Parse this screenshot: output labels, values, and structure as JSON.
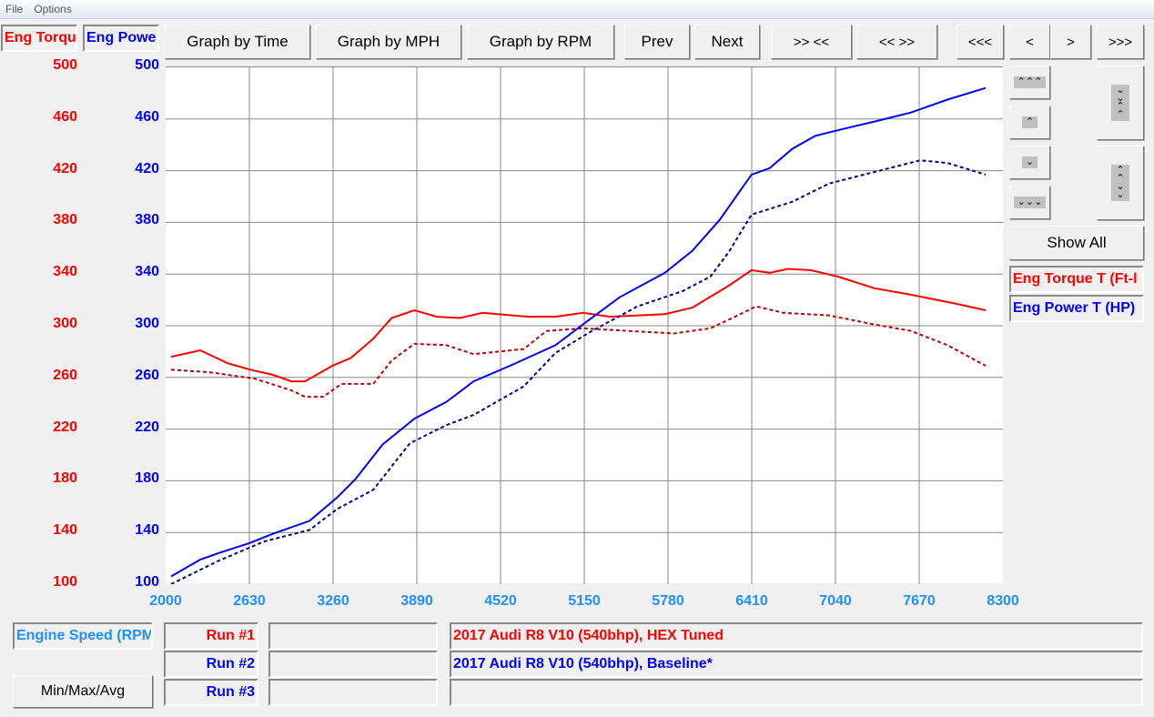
{
  "menu": [
    "File",
    "Options"
  ],
  "legend_boxes": {
    "torque": "Eng Torqu",
    "power": "Eng Powe"
  },
  "toolbar": {
    "time": "Graph by Time",
    "mph": "Graph by MPH",
    "rpm": "Graph by RPM",
    "prev": "Prev",
    "next": "Next",
    "zoom_in": ">> <<",
    "zoom_out": "<< >>",
    "far_left": "<<<",
    "left": "<",
    "right": ">",
    "far_right": ">>>"
  },
  "side": {
    "up_fast": "⌃⌃⌃",
    "up": "⌃",
    "down": "⌄",
    "down_fast": "⌄⌄⌄",
    "expand": "⌄⌄⌃⌃",
    "shrink": "⌃⌃⌄⌄",
    "show_all": "Show All",
    "torque_label": "Eng Torque T (Ft-l",
    "power_label": "Eng Power T (HP)"
  },
  "bottom": {
    "xaxis_label": "Engine Speed (RPM",
    "minmax": "Min/Max/Avg",
    "runs": [
      {
        "label": "Run #1",
        "desc": "2017 Audi R8 V10 (540bhp), HEX Tuned",
        "color": "#ff0000"
      },
      {
        "label": "Run #2",
        "desc": "2017 Audi R8 V10 (540bhp), Baseline*",
        "color": "#0000ff"
      },
      {
        "label": "Run #3",
        "desc": "",
        "color": "#0000ff"
      }
    ]
  },
  "chart_data": {
    "type": "line",
    "xlabel": "Engine Speed (RPM)",
    "xlim": [
      2000,
      8300
    ],
    "xticks": [
      "2000",
      "2630",
      "3260",
      "3890",
      "4520",
      "5150",
      "5780",
      "6410",
      "7040",
      "7670",
      "8300"
    ],
    "ylim_torque": [
      100,
      500
    ],
    "ylim_power": [
      100,
      500
    ],
    "yticks": [
      "500",
      "460",
      "420",
      "380",
      "340",
      "300",
      "260",
      "220",
      "180",
      "140",
      "100"
    ],
    "grid": true,
    "series": [
      {
        "name": "Eng Torque T (Ft-lb) Run #1",
        "axis": "torque",
        "color": "#ff0000",
        "dashed": false,
        "points": [
          [
            2041,
            276
          ],
          [
            2260,
            281
          ],
          [
            2466,
            271
          ],
          [
            2637,
            266
          ],
          [
            2809,
            262
          ],
          [
            2946,
            257
          ],
          [
            3049,
            257
          ],
          [
            3254,
            269
          ],
          [
            3392,
            275
          ],
          [
            3563,
            290
          ],
          [
            3700,
            306
          ],
          [
            3871,
            312
          ],
          [
            4043,
            307
          ],
          [
            4214,
            306
          ],
          [
            4385,
            310
          ],
          [
            4728,
            307
          ],
          [
            4934,
            307
          ],
          [
            5140,
            310
          ],
          [
            5345,
            307
          ],
          [
            5757,
            309
          ],
          [
            5963,
            314
          ],
          [
            6237,
            331
          ],
          [
            6408,
            343
          ],
          [
            6545,
            341
          ],
          [
            6682,
            344
          ],
          [
            6853,
            343
          ],
          [
            7059,
            338
          ],
          [
            7333,
            329
          ],
          [
            7608,
            324
          ],
          [
            7950,
            317
          ],
          [
            8170,
            312
          ]
        ]
      },
      {
        "name": "Eng Torque T (Ft-lb) Run #2",
        "axis": "torque",
        "color": "#c00000",
        "dashed": true,
        "points": [
          [
            2041,
            266
          ],
          [
            2329,
            264
          ],
          [
            2672,
            259
          ],
          [
            2946,
            250
          ],
          [
            3049,
            245
          ],
          [
            3185,
            245
          ],
          [
            3323,
            255
          ],
          [
            3563,
            255
          ],
          [
            3700,
            273
          ],
          [
            3871,
            286
          ],
          [
            4111,
            285
          ],
          [
            4317,
            278
          ],
          [
            4694,
            282
          ],
          [
            4866,
            296
          ],
          [
            5140,
            298
          ],
          [
            5482,
            296
          ],
          [
            5825,
            294
          ],
          [
            6099,
            298
          ],
          [
            6305,
            308
          ],
          [
            6442,
            315
          ],
          [
            6648,
            310
          ],
          [
            6990,
            308
          ],
          [
            7333,
            301
          ],
          [
            7608,
            296
          ],
          [
            7882,
            285
          ],
          [
            8170,
            269
          ]
        ]
      },
      {
        "name": "Eng Power T (HP) Run #1",
        "axis": "power",
        "color": "#0000ff",
        "dashed": false,
        "points": [
          [
            2041,
            106
          ],
          [
            2260,
            119
          ],
          [
            2397,
            124
          ],
          [
            2637,
            132
          ],
          [
            2809,
            139
          ],
          [
            3083,
            149
          ],
          [
            3289,
            167
          ],
          [
            3426,
            181
          ],
          [
            3632,
            208
          ],
          [
            3871,
            228
          ],
          [
            4111,
            241
          ],
          [
            4317,
            257
          ],
          [
            4591,
            269
          ],
          [
            4934,
            285
          ],
          [
            5140,
            301
          ],
          [
            5414,
            322
          ],
          [
            5757,
            341
          ],
          [
            5963,
            358
          ],
          [
            6169,
            382
          ],
          [
            6408,
            417
          ],
          [
            6545,
            422
          ],
          [
            6716,
            437
          ],
          [
            6888,
            447
          ],
          [
            7127,
            453
          ],
          [
            7333,
            458
          ],
          [
            7608,
            465
          ],
          [
            7882,
            475
          ],
          [
            8170,
            484
          ]
        ]
      },
      {
        "name": "Eng Power T (HP) Run #2",
        "axis": "power",
        "color": "#00008b",
        "dashed": true,
        "points": [
          [
            2041,
            100
          ],
          [
            2397,
            118
          ],
          [
            2740,
            133
          ],
          [
            3083,
            142
          ],
          [
            3289,
            158
          ],
          [
            3563,
            173
          ],
          [
            3837,
            209
          ],
          [
            4111,
            223
          ],
          [
            4317,
            231
          ],
          [
            4694,
            253
          ],
          [
            4934,
            279
          ],
          [
            5208,
            296
          ],
          [
            5551,
            315
          ],
          [
            5894,
            327
          ],
          [
            6099,
            338
          ],
          [
            6237,
            357
          ],
          [
            6408,
            386
          ],
          [
            6716,
            396
          ],
          [
            6990,
            410
          ],
          [
            7333,
            419
          ],
          [
            7676,
            428
          ],
          [
            7882,
            426
          ],
          [
            8170,
            417
          ]
        ]
      }
    ]
  }
}
